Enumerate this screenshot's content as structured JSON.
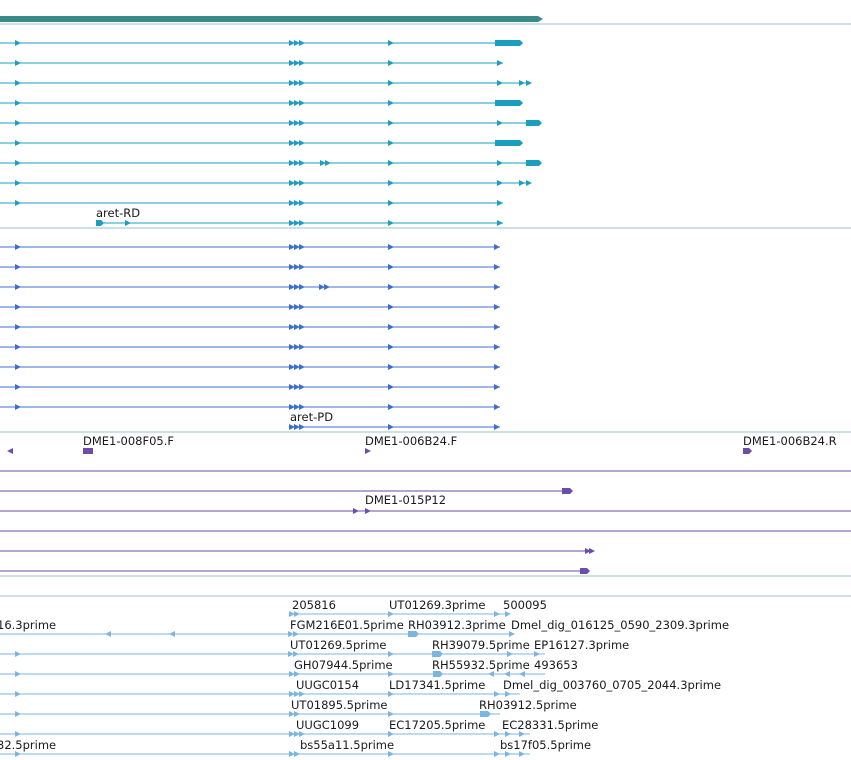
{
  "colors": {
    "gene": "#3a8a8a",
    "mrna": "#1a9fc0",
    "protein": "#3a6fd0",
    "clone": "#6a4eaa",
    "est": "#7ab6e0",
    "divider": "#9fbfcf"
  },
  "labels": {
    "mrna_rd": "aret-RD",
    "protein_pd": "aret-PD",
    "clone_008f05": "DME1-008F05.F",
    "clone_006b24f": "DME1-006B24.F",
    "clone_006b24r": "DME1-006B24.R",
    "clone_015p12": "DME1-015P12",
    "est_r1_a": "205816",
    "est_r1_b": "UT01269.3prime",
    "est_r1_c": "500095",
    "est_r2_a": "16.3prime",
    "est_r2_b": "FGM216E01.5prime",
    "est_r2_c": "RH03912.3prime",
    "est_r2_d": "Dmel_dig_016125_0590_2309.3prime",
    "est_r3_a": "UT01269.5prime",
    "est_r3_b": "RH39079.5prime",
    "est_r3_c": "EP16127.3prime",
    "est_r4_a": "GH07944.5prime",
    "est_r4_b": "RH55932.5prime",
    "est_r4_c": "493653",
    "est_r5_a": "UUGC0154",
    "est_r5_b": "LD17341.5prime",
    "est_r5_c": "Dmel_dig_003760_0705_2044.3prime",
    "est_r6_a": "UT01895.5prime",
    "est_r6_b": "RH03912.5prime",
    "est_r7_a": "UUGC1099",
    "est_r7_b": "EC17205.5prime",
    "est_r7_c": "EC28331.5prime",
    "est_r8_a": "32.5prime",
    "est_r8_b": "bs55a11.5prime",
    "est_r8_c": "bs17f05.5prime"
  }
}
